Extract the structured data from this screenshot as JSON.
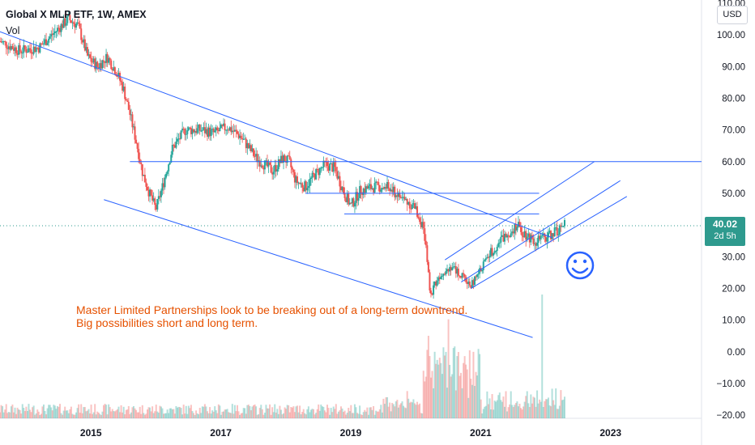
{
  "header": {
    "title": "Global X MLP ETF, 1W, AMEX",
    "volume_label": "Vol",
    "currency": "USD"
  },
  "price_badge": {
    "price": "40.02",
    "countdown": "2d 5h"
  },
  "note": {
    "line1": "Master Limited Partnerships look to be breaking out of a long-term downtrend.",
    "line2": "Big possibilities short and long term."
  },
  "colors": {
    "up": "#26a69a",
    "down": "#ef5350",
    "drawing": "#2962ff",
    "note": "#e65100",
    "badge": "#2e9a8e"
  },
  "chart_data": {
    "type": "candlestick",
    "interval": "1W",
    "last_price": 40.02,
    "y_axis": {
      "ticks": [
        110,
        100,
        90,
        80,
        70,
        60,
        50,
        40,
        30,
        20,
        10,
        0,
        -10,
        -20
      ],
      "tick_labels": [
        "110.00",
        "100.00",
        "90.00",
        "80.00",
        "70.00",
        "60.00",
        "50.00",
        "40.00",
        "30.00",
        "20.00",
        "10.00",
        "0.00",
        "−10.00",
        "−20.00"
      ],
      "range": [
        -21,
        111
      ]
    },
    "x_axis": {
      "tick_labels": [
        "2015",
        "2017",
        "2019",
        "2021",
        "2023"
      ],
      "tick_years": [
        2015,
        2017,
        2019,
        2021,
        2023
      ],
      "range": [
        2013.6,
        2024.4
      ]
    },
    "price_path": [
      [
        2013.6,
        98
      ],
      [
        2013.9,
        95
      ],
      [
        2014.2,
        96
      ],
      [
        2014.45,
        101
      ],
      [
        2014.65,
        105
      ],
      [
        2014.8,
        103
      ],
      [
        2014.95,
        93
      ],
      [
        2015.1,
        90
      ],
      [
        2015.25,
        93
      ],
      [
        2015.4,
        88
      ],
      [
        2015.5,
        83
      ],
      [
        2015.6,
        75
      ],
      [
        2015.7,
        66
      ],
      [
        2015.8,
        56
      ],
      [
        2015.9,
        50
      ],
      [
        2016.0,
        45
      ],
      [
        2016.1,
        52
      ],
      [
        2016.25,
        64
      ],
      [
        2016.45,
        70
      ],
      [
        2016.7,
        70
      ],
      [
        2016.9,
        69
      ],
      [
        2017.1,
        71
      ],
      [
        2017.3,
        68
      ],
      [
        2017.55,
        61
      ],
      [
        2017.8,
        57
      ],
      [
        2017.95,
        61
      ],
      [
        2018.05,
        60
      ],
      [
        2018.15,
        54
      ],
      [
        2018.3,
        52
      ],
      [
        2018.45,
        56
      ],
      [
        2018.6,
        59
      ],
      [
        2018.75,
        58
      ],
      [
        2018.9,
        50
      ],
      [
        2019.0,
        46
      ],
      [
        2019.15,
        51
      ],
      [
        2019.35,
        52
      ],
      [
        2019.55,
        52
      ],
      [
        2019.75,
        49
      ],
      [
        2019.9,
        47
      ],
      [
        2020.0,
        45
      ],
      [
        2020.1,
        40
      ],
      [
        2020.18,
        29
      ],
      [
        2020.22,
        17
      ],
      [
        2020.28,
        21
      ],
      [
        2020.4,
        25
      ],
      [
        2020.55,
        27
      ],
      [
        2020.7,
        24
      ],
      [
        2020.85,
        21
      ],
      [
        2020.95,
        24
      ],
      [
        2021.1,
        30
      ],
      [
        2021.3,
        35
      ],
      [
        2021.45,
        38
      ],
      [
        2021.55,
        40
      ],
      [
        2021.7,
        37
      ],
      [
        2021.85,
        35
      ],
      [
        2022.0,
        36
      ],
      [
        2022.15,
        38
      ],
      [
        2022.3,
        40
      ]
    ],
    "volume_spikes": [
      {
        "x": 2020.2,
        "value_fraction": 0.6
      },
      {
        "x": 2020.5,
        "value_fraction": 0.72
      },
      {
        "x": 2021.95,
        "value_fraction": 0.9
      }
    ],
    "drawings": {
      "lines": [
        {
          "from": [
            2013.6,
            101
          ],
          "to": [
            2022.1,
            36
          ]
        },
        {
          "from": [
            2015.2,
            48
          ],
          "to": [
            2021.8,
            4.5
          ]
        },
        {
          "from": [
            2015.6,
            60
          ],
          "to": [
            2024.4,
            60
          ]
        },
        {
          "from": [
            2018.3,
            50
          ],
          "to": [
            2021.9,
            50
          ]
        },
        {
          "from": [
            2018.9,
            43.5
          ],
          "to": [
            2021.9,
            43.5
          ]
        },
        {
          "from": [
            2020.45,
            29
          ],
          "to": [
            2022.75,
            60
          ]
        },
        {
          "from": [
            2020.7,
            22
          ],
          "to": [
            2023.15,
            54
          ]
        },
        {
          "from": [
            2020.85,
            20
          ],
          "to": [
            2023.25,
            49
          ]
        }
      ],
      "horizontal_lines": [
        60
      ],
      "emoji": "☺"
    }
  }
}
